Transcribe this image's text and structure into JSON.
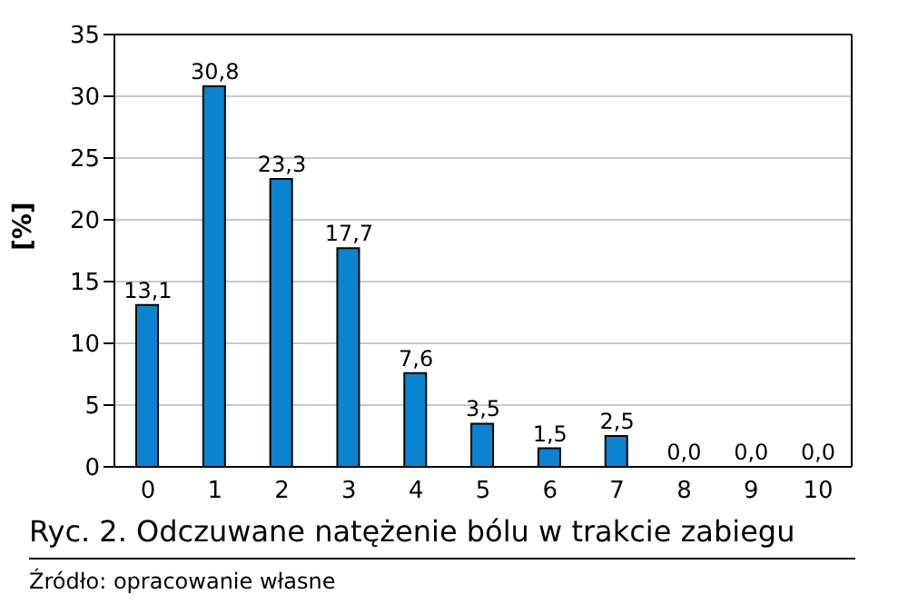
{
  "chart_data": {
    "type": "bar",
    "title": "Ryc. 2. Odczuwane natężenie bólu w trakcie zabiegu",
    "ylabel": "[%]",
    "annotations": [
      "Źródło: opracowanie własne"
    ],
    "categories": [
      "0",
      "1",
      "2",
      "3",
      "4",
      "5",
      "6",
      "7",
      "8",
      "9",
      "10"
    ],
    "values": [
      13.1,
      30.8,
      23.3,
      17.7,
      7.6,
      3.5,
      1.5,
      2.5,
      0,
      0,
      0
    ],
    "value_labels": [
      "13,1",
      "30,8",
      "23,3",
      "17,7",
      "7,6",
      "3,5",
      "1,5",
      "2,5",
      "0,0",
      "0,0",
      "0,0"
    ],
    "color": "#0a84d0",
    "ylim": [
      0,
      35
    ],
    "yticks": [
      0,
      5,
      10,
      15,
      20,
      25,
      30,
      35
    ],
    "grid": "y"
  }
}
